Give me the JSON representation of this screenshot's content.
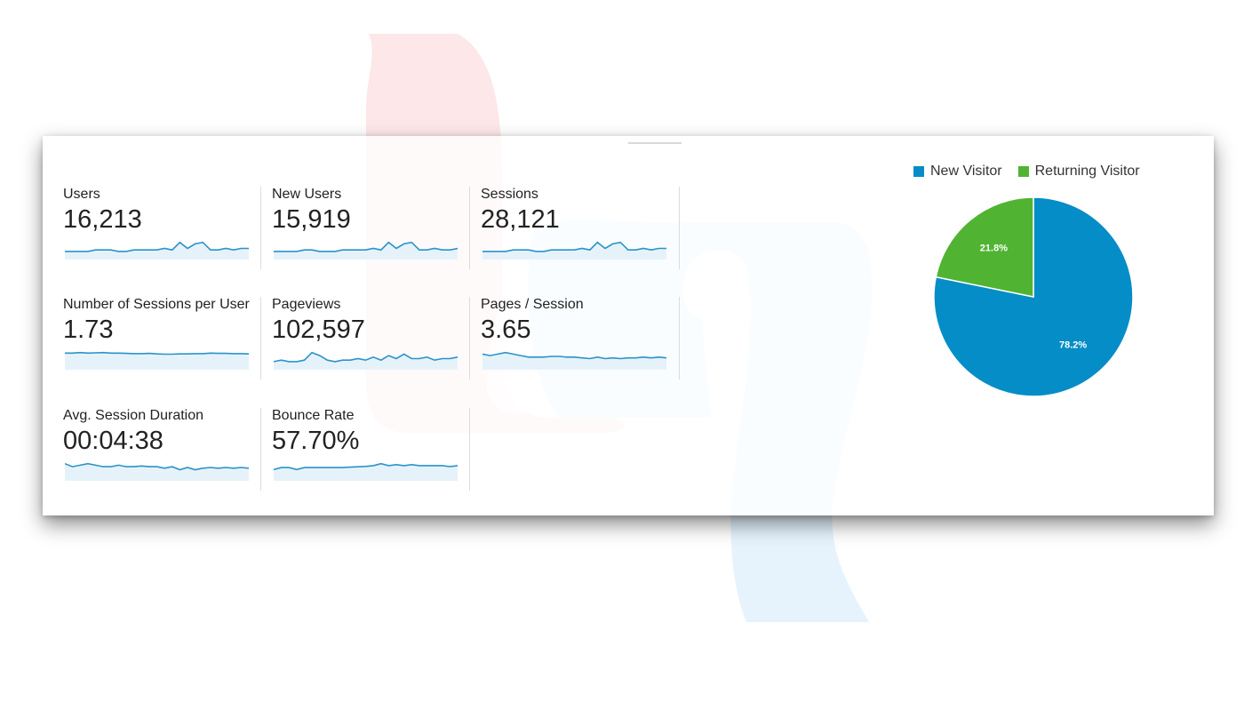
{
  "metrics": [
    {
      "label": "Users",
      "value": "16,213",
      "trend": [
        3,
        3,
        3,
        3,
        4,
        4,
        4,
        3,
        3,
        4,
        4,
        4,
        4,
        5,
        4,
        9,
        5,
        8,
        9,
        4,
        4,
        5,
        4,
        5,
        5
      ]
    },
    {
      "label": "New Users",
      "value": "15,919",
      "trend": [
        3,
        3,
        3,
        3,
        4,
        4,
        3,
        3,
        3,
        4,
        4,
        4,
        4,
        5,
        4,
        9,
        5,
        8,
        9,
        4,
        4,
        5,
        4,
        4,
        5
      ]
    },
    {
      "label": "Sessions",
      "value": "28,121",
      "trend": [
        3,
        3,
        3,
        3,
        4,
        4,
        4,
        3,
        3,
        4,
        4,
        4,
        4,
        5,
        4,
        9,
        5,
        8,
        9,
        4,
        4,
        5,
        4,
        5,
        5
      ]
    },
    {
      "label": "Number of Sessions per User",
      "value": "1.73",
      "trend": [
        5,
        5,
        5.2,
        5,
        5.1,
        5.2,
        5,
        5,
        4.9,
        4.8,
        4.8,
        4.9,
        4.7,
        4.6,
        4.6,
        4.7,
        4.7,
        4.8,
        4.8,
        5,
        4.9,
        4.9,
        4.8,
        4.8,
        4.7
      ]
    },
    {
      "label": "Pageviews",
      "value": "102,597",
      "trend": [
        3,
        4,
        3,
        3,
        4,
        9,
        7,
        4,
        3,
        4,
        4,
        5,
        4,
        6,
        4,
        7,
        5,
        8,
        5,
        5,
        6,
        4,
        5,
        5,
        6
      ]
    },
    {
      "label": "Pages / Session",
      "value": "3.65",
      "trend": [
        8,
        7,
        8,
        9,
        8,
        7,
        6,
        6,
        6,
        6.5,
        6.5,
        6,
        6,
        5.5,
        5,
        6,
        5,
        5.5,
        5,
        5.5,
        5.5,
        6,
        5.5,
        6,
        5.5
      ]
    },
    {
      "label": "Avg. Session Duration",
      "value": "00:04:38",
      "trend": [
        9,
        7,
        8,
        9,
        8,
        7,
        7,
        8,
        7,
        7,
        7.5,
        7,
        7,
        6,
        7,
        5,
        6.5,
        5,
        6,
        6.5,
        6,
        6.5,
        6,
        6.5,
        6
      ]
    },
    {
      "label": "Bounce Rate",
      "value": "57.70%",
      "trend": [
        4,
        5,
        5,
        4,
        5,
        5,
        5,
        5,
        5,
        5,
        5.2,
        5.4,
        5.6,
        6,
        7,
        6,
        6.5,
        6,
        6.5,
        6,
        6,
        6,
        6,
        5.5,
        6
      ]
    }
  ],
  "legend": [
    {
      "label": "New Visitor",
      "color": "#058DC7"
    },
    {
      "label": "Returning Visitor",
      "color": "#50B432"
    }
  ],
  "pie": {
    "slices": [
      {
        "label": "78.2%",
        "value": 78.2,
        "color": "#058DC7"
      },
      {
        "label": "21.8%",
        "value": 21.8,
        "color": "#50B432"
      }
    ]
  },
  "colors": {
    "sparkline": "#2a93c9",
    "sparkfill": "#e6f2fa"
  }
}
